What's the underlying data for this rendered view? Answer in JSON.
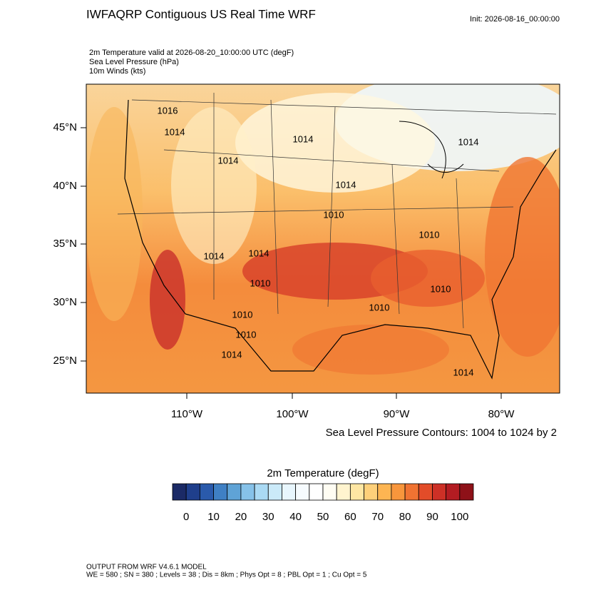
{
  "header": {
    "title": "IWFAQRP Contiguous US Real Time WRF",
    "init": "Init: 2026-08-16_00:00:00"
  },
  "fields": [
    "2m Temperature valid at 2026-08-20_10:00:00 UTC   (degF)",
    "Sea Level Pressure   (hPa)",
    "10m Winds   (kts)"
  ],
  "map": {
    "lat_labels": [
      "45°N",
      "40°N",
      "35°N",
      "30°N",
      "25°N"
    ],
    "lon_labels": [
      "110°W",
      "100°W",
      "90°W",
      "80°W"
    ],
    "contour_labels": [
      "1016",
      "1014",
      "1014",
      "1014",
      "1014",
      "1014",
      "1014",
      "1010",
      "1010",
      "1010",
      "1010",
      "1010",
      "1010",
      "1010",
      "1014",
      "1014",
      "1014"
    ],
    "contour_note": "Sea Level Pressure Contours: 1004 to 1024 by 2"
  },
  "colorbar": {
    "title": "2m Temperature  (degF)",
    "colors": [
      "#1b2a66",
      "#1f3f8c",
      "#2a5aab",
      "#3f80c4",
      "#5fa3d6",
      "#86c2e9",
      "#aadaf4",
      "#cbeaf9",
      "#e8f6fd",
      "#f6fbfe",
      "#ffffff",
      "#fffdf3",
      "#fff4cf",
      "#fee6a3",
      "#fed07a",
      "#fdb552",
      "#f8963c",
      "#f07332",
      "#e24c29",
      "#cd3026",
      "#b31c22",
      "#8e1118"
    ],
    "labels": [
      0,
      10,
      20,
      30,
      40,
      50,
      60,
      70,
      80,
      90,
      100
    ]
  },
  "footer": [
    "OUTPUT FROM WRF V4.6.1 MODEL",
    "WE = 580 ; SN = 380 ; Levels = 38 ; Dis = 8km ; Phys Opt = 8 ; PBL Opt = 1 ; Cu Opt = 5"
  ]
}
